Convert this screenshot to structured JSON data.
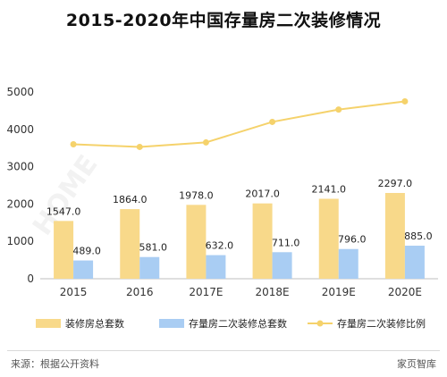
{
  "chart_data": {
    "type": "bar",
    "title": "2015-2020年中国存量房二次装修情况",
    "categories": [
      "2015",
      "2016",
      "2017E",
      "2018E",
      "2019E",
      "2020E"
    ],
    "ylim": [
      0,
      5000
    ],
    "yticks": [
      0,
      1000,
      2000,
      3000,
      4000,
      5000
    ],
    "grid": false,
    "legend_position": "bottom",
    "series": [
      {
        "name": "装修房总套数",
        "type": "bar",
        "color": "#f8d98a",
        "values": [
          1547.0,
          1864.0,
          1978.0,
          2017.0,
          2141.0,
          2297.0
        ],
        "labels": [
          "1547.0",
          "1864.0",
          "1978.0",
          "2017.0",
          "2141.0",
          "2297.0"
        ]
      },
      {
        "name": "存量房二次装修总套数",
        "type": "bar",
        "color": "#a9cdf3",
        "values": [
          489.0,
          581.0,
          632.0,
          711.0,
          796.0,
          885.0
        ],
        "labels": [
          "489.0",
          "581.0",
          "632.0",
          "711.0",
          "796.0",
          "885.0"
        ]
      },
      {
        "name": "存量房二次装修比例",
        "type": "line",
        "color": "#f5d26b",
        "values": [
          3600,
          3530,
          3650,
          4200,
          4530,
          4750
        ]
      }
    ]
  },
  "footer": {
    "source": "来源：根据公开资料",
    "brand": "家页智库"
  },
  "watermark": "HOME"
}
